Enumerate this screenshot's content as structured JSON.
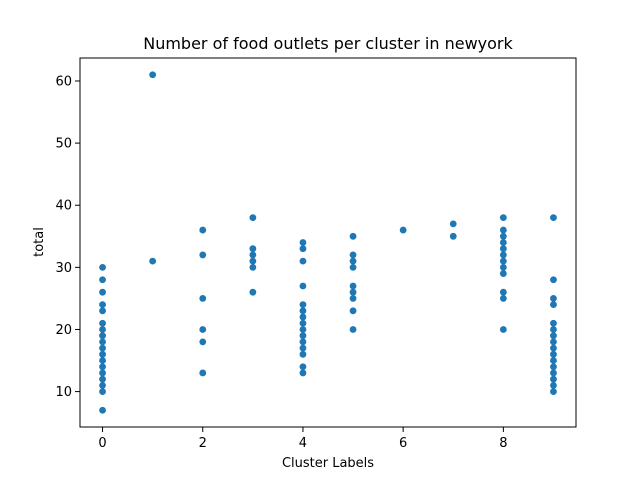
{
  "chart_data": {
    "type": "scatter",
    "title": "Number of food outlets per cluster in newyork",
    "xlabel": "Cluster Labels",
    "ylabel": "total",
    "xlim": [
      -0.45,
      9.45
    ],
    "ylim": [
      4.3,
      63.7
    ],
    "xticks": [
      0,
      2,
      4,
      6,
      8
    ],
    "yticks": [
      10,
      20,
      30,
      40,
      50,
      60
    ],
    "grid": false,
    "marker_color": "#1f77b4",
    "series": [
      {
        "points": [
          [
            0,
            7
          ],
          [
            0,
            10
          ],
          [
            0,
            11
          ],
          [
            0,
            12
          ],
          [
            0,
            13
          ],
          [
            0,
            14
          ],
          [
            0,
            15
          ],
          [
            0,
            16
          ],
          [
            0,
            17
          ],
          [
            0,
            18
          ],
          [
            0,
            19
          ],
          [
            0,
            20
          ],
          [
            0,
            21
          ],
          [
            0,
            23
          ],
          [
            0,
            24
          ],
          [
            0,
            26
          ],
          [
            0,
            28
          ],
          [
            0,
            30
          ],
          [
            1,
            31
          ],
          [
            1,
            61
          ],
          [
            2,
            13
          ],
          [
            2,
            18
          ],
          [
            2,
            20
          ],
          [
            2,
            25
          ],
          [
            2,
            32
          ],
          [
            2,
            36
          ],
          [
            3,
            26
          ],
          [
            3,
            30
          ],
          [
            3,
            31
          ],
          [
            3,
            32
          ],
          [
            3,
            33
          ],
          [
            3,
            38
          ],
          [
            4,
            13
          ],
          [
            4,
            14
          ],
          [
            4,
            16
          ],
          [
            4,
            17
          ],
          [
            4,
            18
          ],
          [
            4,
            19
          ],
          [
            4,
            20
          ],
          [
            4,
            21
          ],
          [
            4,
            22
          ],
          [
            4,
            23
          ],
          [
            4,
            24
          ],
          [
            4,
            27
          ],
          [
            4,
            31
          ],
          [
            4,
            33
          ],
          [
            4,
            34
          ],
          [
            5,
            20
          ],
          [
            5,
            23
          ],
          [
            5,
            25
          ],
          [
            5,
            26
          ],
          [
            5,
            27
          ],
          [
            5,
            30
          ],
          [
            5,
            31
          ],
          [
            5,
            32
          ],
          [
            5,
            35
          ],
          [
            6,
            36
          ],
          [
            7,
            35
          ],
          [
            7,
            37
          ],
          [
            8,
            20
          ],
          [
            8,
            25
          ],
          [
            8,
            26
          ],
          [
            8,
            29
          ],
          [
            8,
            30
          ],
          [
            8,
            31
          ],
          [
            8,
            32
          ],
          [
            8,
            33
          ],
          [
            8,
            34
          ],
          [
            8,
            35
          ],
          [
            8,
            36
          ],
          [
            8,
            38
          ],
          [
            9,
            10
          ],
          [
            9,
            11
          ],
          [
            9,
            12
          ],
          [
            9,
            13
          ],
          [
            9,
            14
          ],
          [
            9,
            15
          ],
          [
            9,
            16
          ],
          [
            9,
            17
          ],
          [
            9,
            18
          ],
          [
            9,
            19
          ],
          [
            9,
            20
          ],
          [
            9,
            21
          ],
          [
            9,
            24
          ],
          [
            9,
            25
          ],
          [
            9,
            28
          ],
          [
            9,
            38
          ]
        ]
      }
    ]
  }
}
